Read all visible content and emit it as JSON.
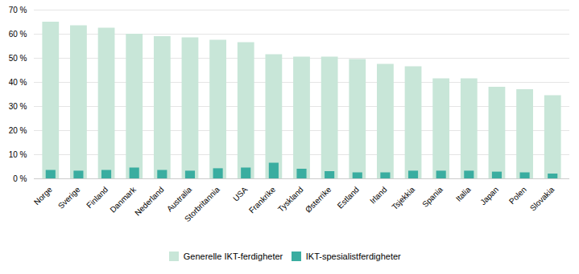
{
  "chart_data": {
    "type": "bar",
    "categories": [
      "Norge",
      "Sverige",
      "Finland",
      "Danmark",
      "Nederland",
      "Australia",
      "Storbritannia",
      "USA",
      "Frankrike",
      "Tyskland",
      "Østerrike",
      "Estland",
      "Irland",
      "Tsjekkia",
      "Spania",
      "Italia",
      "Japan",
      "Polen",
      "Slovakia"
    ],
    "series": [
      {
        "name": "Generelle IKT-ferdigheter",
        "color": "#c8e6d8",
        "values": [
          65,
          63.5,
          62.5,
          60,
          59,
          58.5,
          57.5,
          56.5,
          51.5,
          50.5,
          50.5,
          49.5,
          47.5,
          46.5,
          41.5,
          41.5,
          38,
          37,
          34.5
        ]
      },
      {
        "name": "IKT-spesialistferdigheter",
        "color": "#3aada0",
        "values": [
          3.5,
          3.2,
          3.5,
          4.5,
          3.5,
          3.2,
          4.2,
          4.5,
          6.5,
          4.0,
          3.0,
          2.5,
          2.5,
          3.2,
          3.2,
          3.2,
          2.8,
          2.5,
          2.0
        ]
      }
    ],
    "ylim": [
      0,
      70
    ],
    "yticks": [
      {
        "value": 0,
        "label": "0 %"
      },
      {
        "value": 10,
        "label": "10 %"
      },
      {
        "value": 20,
        "label": "20 %"
      },
      {
        "value": 30,
        "label": "30 %"
      },
      {
        "value": 40,
        "label": "40 %"
      },
      {
        "value": 50,
        "label": "50 %"
      },
      {
        "value": 60,
        "label": "60 %"
      },
      {
        "value": 70,
        "label": "70 %"
      }
    ],
    "grid": true,
    "legend": "bottom",
    "stacked": false
  }
}
